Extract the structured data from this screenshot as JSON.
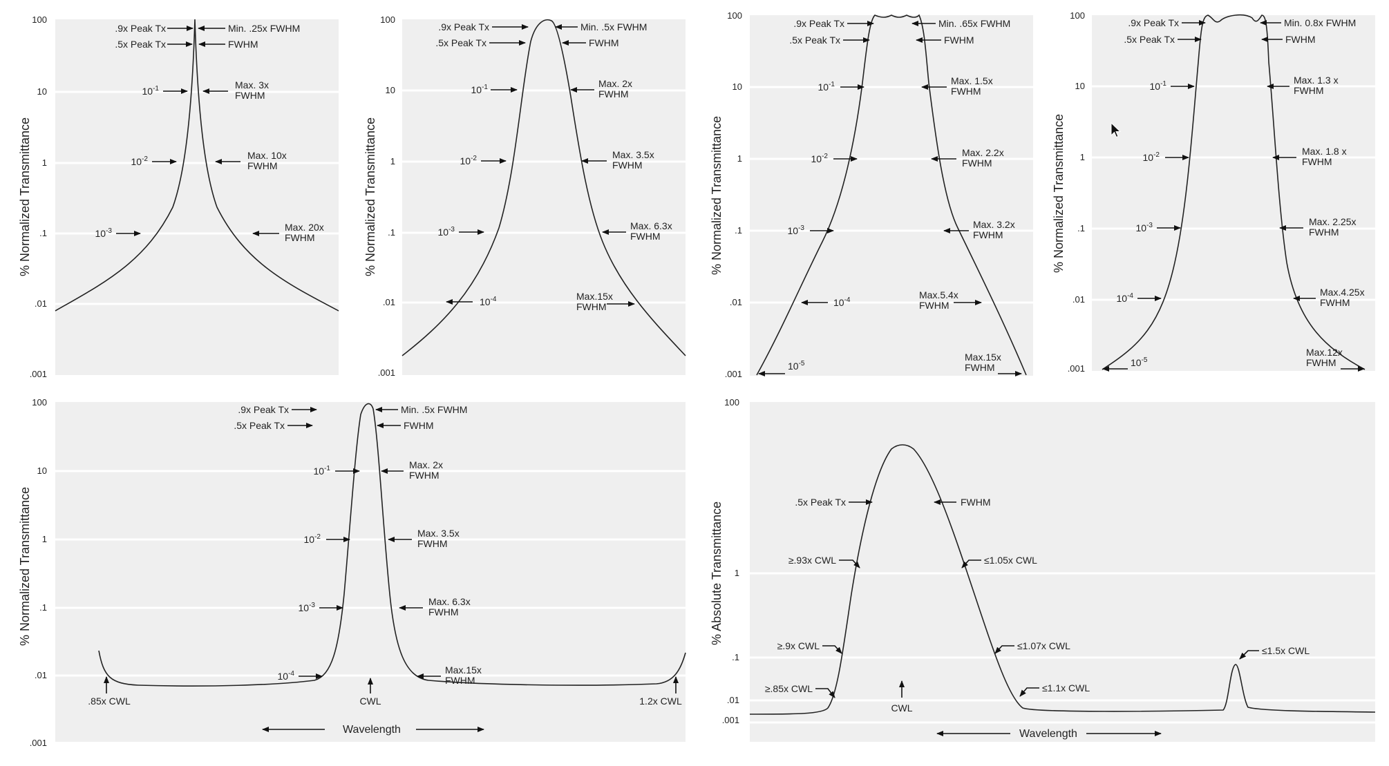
{
  "axis_ticks": [
    "100",
    "10",
    "1",
    ".1",
    ".01",
    ".001"
  ],
  "abs_axis_ticks": [
    "100",
    "1",
    ".1",
    ".01",
    ".001"
  ],
  "ylabels": {
    "normalized": "% Normalized Transmittance",
    "absolute": "% Absolute Transmittance"
  },
  "xlabel": "Wavelength",
  "panels": [
    {
      "id": "p1",
      "ylabel": "% Normalized Transmittance",
      "ticks": [
        "100",
        "10",
        "1",
        ".1",
        ".01",
        ".001"
      ],
      "left": [
        {
          "text": ".9x Peak Tx"
        },
        {
          "text": ".5x Peak Tx"
        },
        {
          "base": "10",
          "exp": "-1"
        },
        {
          "base": "10",
          "exp": "-2"
        },
        {
          "base": "10",
          "exp": "-3"
        }
      ],
      "right": [
        {
          "lines": [
            "Min. .25x FWHM"
          ]
        },
        {
          "lines": [
            "FWHM"
          ]
        },
        {
          "lines": [
            "Max. 3x",
            "FWHM"
          ]
        },
        {
          "lines": [
            "Max. 10x",
            "FWHM"
          ]
        },
        {
          "lines": [
            "Max. 20x",
            "FWHM"
          ]
        }
      ]
    },
    {
      "id": "p2",
      "ylabel": "% Normalized Transmittance",
      "ticks": [
        "100",
        "10",
        "1",
        ".1",
        ".01",
        ".001"
      ],
      "left": [
        {
          "text": ".9x Peak Tx"
        },
        {
          "text": ".5x Peak Tx"
        },
        {
          "base": "10",
          "exp": "-1"
        },
        {
          "base": "10",
          "exp": "-2"
        },
        {
          "base": "10",
          "exp": "-3"
        },
        {
          "base": "10",
          "exp": "-4"
        }
      ],
      "right": [
        {
          "lines": [
            "Min. .5x FWHM"
          ]
        },
        {
          "lines": [
            "FWHM"
          ]
        },
        {
          "lines": [
            "Max. 2x",
            "FWHM"
          ]
        },
        {
          "lines": [
            "Max. 3.5x",
            "FWHM"
          ]
        },
        {
          "lines": [
            "Max. 6.3x",
            "FWHM"
          ]
        },
        {
          "lines": [
            "Max.15x",
            "FWHM"
          ]
        }
      ]
    },
    {
      "id": "p3",
      "ylabel": "% Normalized Transmittance",
      "ticks": [
        "100",
        "10",
        "1",
        ".1",
        ".01",
        ".001"
      ],
      "left": [
        {
          "text": ".9x Peak Tx"
        },
        {
          "text": ".5x Peak Tx"
        },
        {
          "base": "10",
          "exp": "-1"
        },
        {
          "base": "10",
          "exp": "-2"
        },
        {
          "base": "10",
          "exp": "-3"
        },
        {
          "base": "10",
          "exp": "-4"
        },
        {
          "base": "10",
          "exp": "-5"
        }
      ],
      "right": [
        {
          "lines": [
            "Min. .65x FWHM"
          ]
        },
        {
          "lines": [
            "FWHM"
          ]
        },
        {
          "lines": [
            "Max. 1.5x",
            "FWHM"
          ]
        },
        {
          "lines": [
            "Max. 2.2x",
            "FWHM"
          ]
        },
        {
          "lines": [
            "Max. 3.2x",
            "FWHM"
          ]
        },
        {
          "lines": [
            "Max.5.4x",
            "FWHM"
          ]
        },
        {
          "lines": [
            "Max.15x",
            "FWHM"
          ]
        }
      ]
    },
    {
      "id": "p4",
      "ylabel": "% Normalized Transmittance",
      "ticks": [
        "100",
        "10",
        "1",
        ".1",
        ".01",
        ".001"
      ],
      "left": [
        {
          "text": ".9x Peak Tx"
        },
        {
          "text": ".5x Peak Tx"
        },
        {
          "base": "10",
          "exp": "-1"
        },
        {
          "base": "10",
          "exp": "-2"
        },
        {
          "base": "10",
          "exp": "-3"
        },
        {
          "base": "10",
          "exp": "-4"
        },
        {
          "base": "10",
          "exp": "-5"
        }
      ],
      "right": [
        {
          "lines": [
            "Min. 0.8x FWHM"
          ]
        },
        {
          "lines": [
            "FWHM"
          ]
        },
        {
          "lines": [
            "Max. 1.3  x",
            "FWHM"
          ]
        },
        {
          "lines": [
            "Max. 1.8  x",
            "FWHM"
          ]
        },
        {
          "lines": [
            "Max. 2.25x",
            "FWHM"
          ]
        },
        {
          "lines": [
            "Max.4.25x",
            "FWHM"
          ]
        },
        {
          "lines": [
            "Max.12x",
            "FWHM"
          ]
        }
      ]
    },
    {
      "id": "p5",
      "ylabel": "% Normalized Transmittance",
      "ticks": [
        "100",
        "10",
        "1",
        ".1",
        ".01",
        ".001"
      ],
      "left": [
        {
          "text": ".9x Peak Tx"
        },
        {
          "text": ".5x Peak Tx"
        },
        {
          "base": "10",
          "exp": "-1"
        },
        {
          "base": "10",
          "exp": "-2"
        },
        {
          "base": "10",
          "exp": "-3"
        },
        {
          "base": "10",
          "exp": "-4"
        }
      ],
      "right": [
        {
          "lines": [
            "Min. .5x FWHM"
          ]
        },
        {
          "lines": [
            "FWHM"
          ]
        },
        {
          "lines": [
            "Max. 2x",
            "FWHM"
          ]
        },
        {
          "lines": [
            "Max. 3.5x",
            "FWHM"
          ]
        },
        {
          "lines": [
            "Max. 6.3x",
            "FWHM"
          ]
        },
        {
          "lines": [
            "Max.15x",
            "FWHM"
          ]
        }
      ],
      "bottom": [
        ".85x CWL",
        "CWL",
        "1.2x CWL"
      ],
      "xlabel": "Wavelength"
    },
    {
      "id": "p6",
      "ylabel": "% Absolute Transmittance",
      "ticks": [
        "100",
        "1",
        ".1",
        ".01",
        ".001"
      ],
      "left": [
        {
          "text": ".5x Peak Tx"
        },
        {
          "text": "≥.93x CWL"
        },
        {
          "text": "≥.9x CWL"
        },
        {
          "text": "≥.85x CWL"
        }
      ],
      "right": [
        {
          "text": "FWHM"
        },
        {
          "text": "≤1.05x CWL"
        },
        {
          "text": "≤1.07x CWL"
        },
        {
          "text": "≤1.1x CWL"
        },
        {
          "text": "≤1.5x CWL"
        }
      ],
      "bottom": [
        "CWL"
      ],
      "xlabel": "Wavelength"
    }
  ]
}
